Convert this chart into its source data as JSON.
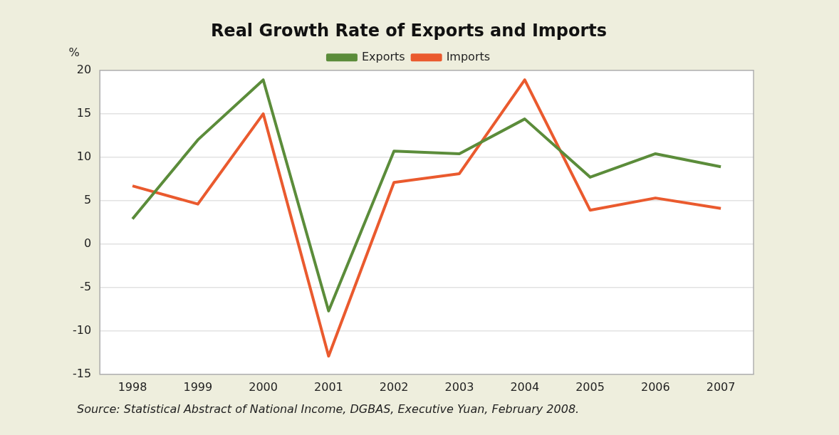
{
  "chart_data": {
    "type": "line",
    "title": "Real Growth Rate of Exports and Imports",
    "ylabel": "%",
    "categories": [
      "1998",
      "1999",
      "2000",
      "2001",
      "2002",
      "2003",
      "2004",
      "2005",
      "2006",
      "2007"
    ],
    "series": [
      {
        "name": "Exports",
        "color": "#5b8c3a",
        "values": [
          2.9,
          12.0,
          18.9,
          -7.7,
          10.7,
          10.4,
          14.4,
          7.7,
          10.4,
          8.9
        ]
      },
      {
        "name": "Imports",
        "color": "#ea5a2e",
        "values": [
          6.7,
          4.6,
          15.0,
          -12.9,
          7.1,
          8.1,
          18.9,
          3.9,
          5.3,
          4.1
        ]
      }
    ],
    "ylim": [
      -15,
      20
    ],
    "yticks": [
      -15,
      -10,
      -5,
      0,
      5,
      10,
      15,
      20
    ],
    "grid": "y",
    "legend": "top",
    "marker": "none",
    "line_style": "solid",
    "annotations": [
      "Source: Statistical Abstract of National Income, DGBAS, Executive Yuan, February 2008."
    ]
  }
}
